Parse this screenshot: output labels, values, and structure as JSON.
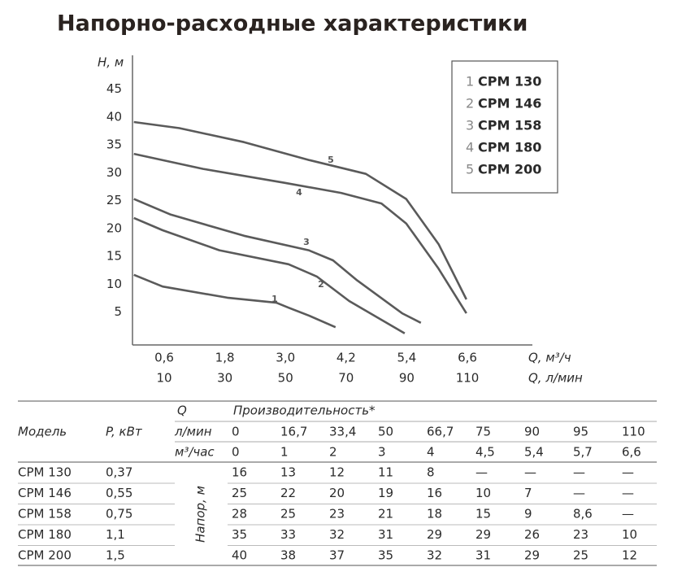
{
  "chart_data": {
    "type": "line",
    "title": "Напорно-расходные характеристики",
    "y_label": "H, м",
    "x_label": "Q, м³/ч",
    "x2_label": "Q, л/мин",
    "xlim": [
      0,
      7.5
    ],
    "ylim": [
      0,
      48
    ],
    "xticks": [
      {
        "value": 0.6,
        "label": "0,6"
      },
      {
        "value": 1.8,
        "label": "1,8"
      },
      {
        "value": 3.0,
        "label": "3,0"
      },
      {
        "value": 4.2,
        "label": "4,2"
      },
      {
        "value": 5.4,
        "label": "5,4"
      },
      {
        "value": 6.6,
        "label": "6,6"
      }
    ],
    "x2ticks": [
      10,
      30,
      50,
      70,
      90,
      110
    ],
    "yticks": [
      5,
      10,
      15,
      20,
      25,
      30,
      35,
      40,
      45
    ],
    "grid": false,
    "series": [
      {
        "label": "1",
        "name": "СРМ 130",
        "color": "#5a5a5a",
        "x": [
          0,
          0.57,
          1.85,
          2.82,
          3.06,
          3.46,
          3.99
        ],
        "values": [
          11.7,
          9.6,
          7.6,
          6.7,
          5.8,
          4.4,
          2.3
        ]
      },
      {
        "label": "2",
        "name": "СРМ 146",
        "color": "#5a5a5a",
        "x": [
          0,
          0.57,
          1.69,
          3.06,
          3.62,
          4.26,
          5.36
        ],
        "values": [
          21.9,
          19.7,
          16.1,
          13.6,
          11.4,
          7.0,
          1.2
        ]
      },
      {
        "label": "3",
        "name": "СРМ 158",
        "color": "#5a5a5a",
        "x": [
          0,
          0.73,
          2.18,
          3.46,
          3.94,
          4.42,
          5.31,
          5.68
        ],
        "values": [
          25.3,
          22.5,
          18.7,
          16.1,
          14.3,
          10.7,
          4.8,
          3.1
        ]
      },
      {
        "label": "4",
        "name": "СРМ 180",
        "color": "#5a5a5a",
        "x": [
          0,
          1.37,
          2.98,
          4.1,
          4.9,
          5.39,
          6.03,
          6.58
        ],
        "values": [
          33.4,
          30.7,
          28.2,
          26.4,
          24.5,
          20.9,
          12.8,
          4.8
        ]
      },
      {
        "label": "5",
        "name": "СРМ 200",
        "color": "#5a5a5a",
        "x": [
          0,
          0.9,
          2.18,
          3.46,
          4.59,
          5.39,
          6.03,
          6.58
        ],
        "values": [
          39.1,
          38.0,
          35.5,
          32.3,
          29.8,
          25.3,
          17.2,
          7.3
        ]
      }
    ]
  },
  "table": {
    "header": {
      "q": "Q",
      "performance": "Производительность*",
      "model": "Модель",
      "power": "P, кВт",
      "unit_lmin": "л/мин",
      "unit_m3": "м³/час",
      "head": "Напор, м",
      "lmin": [
        "0",
        "16,7",
        "33,4",
        "50",
        "66,7",
        "75",
        "90",
        "95",
        "110"
      ],
      "m3": [
        "0",
        "1",
        "2",
        "3",
        "4",
        "4,5",
        "5,4",
        "5,7",
        "6,6"
      ]
    },
    "rows": [
      [
        "СРМ 130",
        "0,37",
        "16",
        "13",
        "12",
        "11",
        "8",
        "—",
        "—",
        "—",
        "—"
      ],
      [
        "СРМ 146",
        "0,55",
        "25",
        "22",
        "20",
        "19",
        "16",
        "10",
        "7",
        "—",
        "—"
      ],
      [
        "СРМ 158",
        "0,75",
        "28",
        "25",
        "23",
        "21",
        "18",
        "15",
        "9",
        "8,6",
        "—"
      ],
      [
        "СРМ 180",
        "1,1",
        "35",
        "33",
        "32",
        "31",
        "29",
        "29",
        "26",
        "23",
        "10"
      ],
      [
        "СРМ 200",
        "1,5",
        "40",
        "38",
        "37",
        "35",
        "32",
        "31",
        "29",
        "25",
        "12"
      ]
    ]
  }
}
